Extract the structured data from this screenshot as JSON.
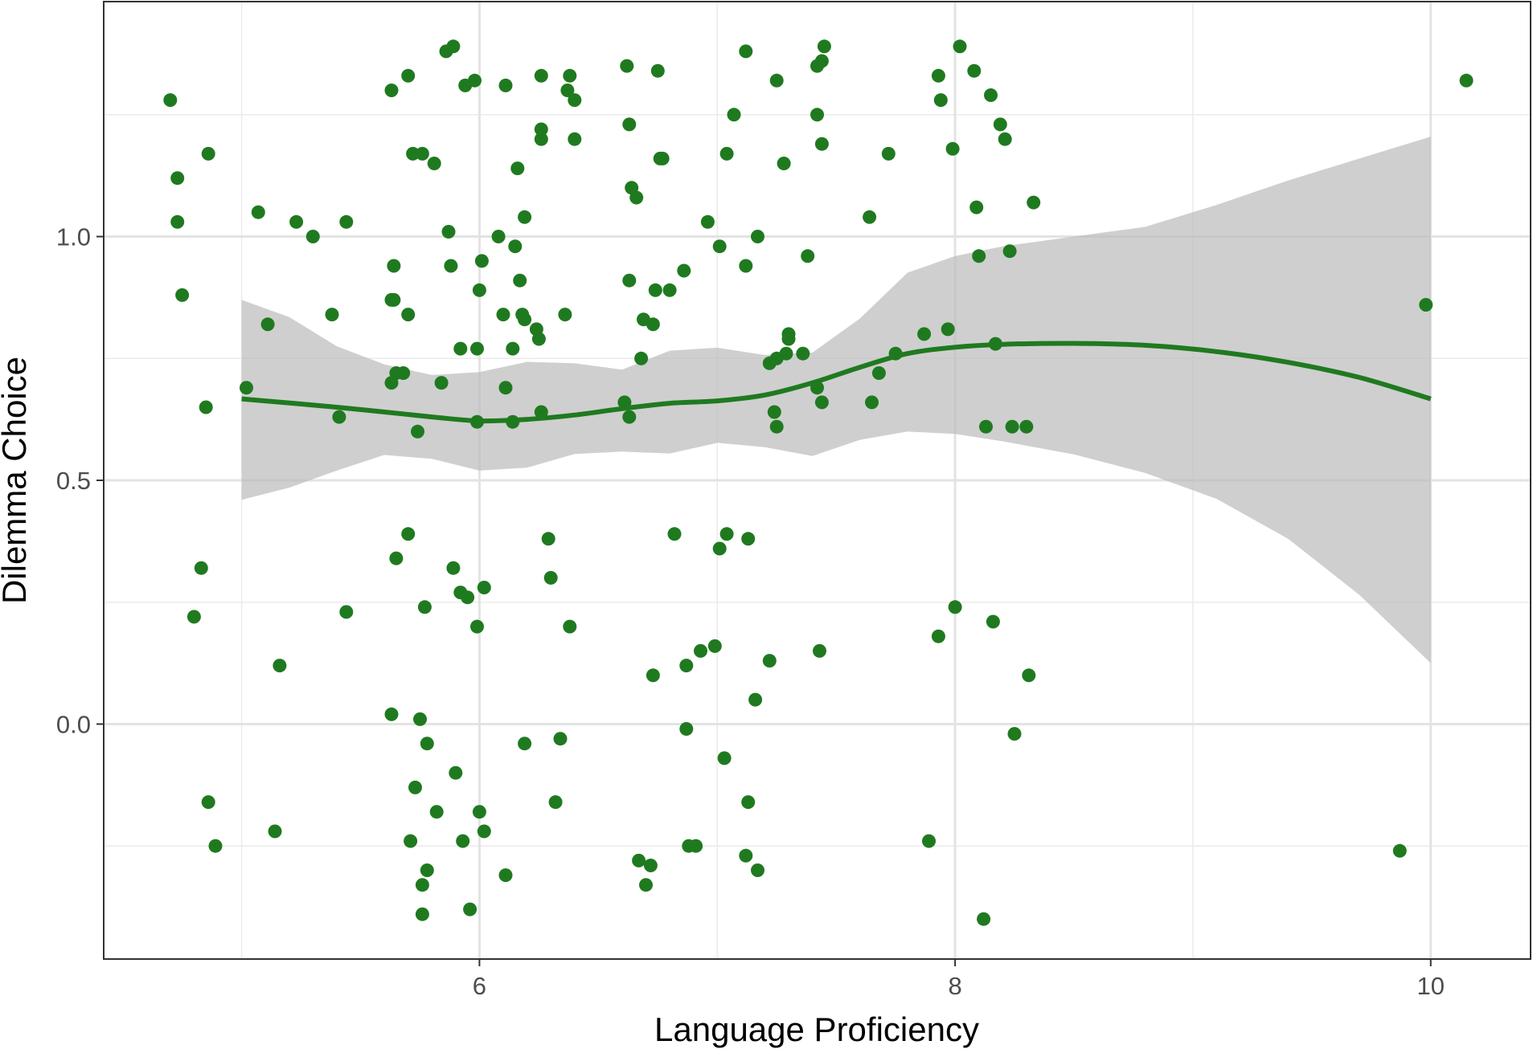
{
  "chart_data": {
    "type": "scatter",
    "title": "",
    "xlabel": "Language Proficiency",
    "ylabel": "Dilemma Choice",
    "xlim": [
      4.42,
      10.42
    ],
    "ylim": [
      -0.482,
      1.482
    ],
    "x_ticks": [
      6,
      8,
      10
    ],
    "y_ticks": [
      0.0,
      0.5,
      1.0
    ],
    "x_tick_labels": [
      "6",
      "8",
      "10"
    ],
    "y_tick_labels": [
      "0.0",
      "0.5",
      "1.0"
    ],
    "grid": true,
    "legend": "none",
    "point_color": "#1f7a1f",
    "line_color": "#1f7a1f",
    "band_color": "#bdbdbd",
    "points": [
      [
        4.7,
        1.28
      ],
      [
        4.73,
        1.12
      ],
      [
        4.73,
        1.03
      ],
      [
        4.75,
        0.88
      ],
      [
        4.83,
        0.32
      ],
      [
        4.8,
        0.22
      ],
      [
        4.85,
        0.65
      ],
      [
        4.86,
        1.17
      ],
      [
        4.86,
        -0.16
      ],
      [
        4.89,
        -0.25
      ],
      [
        5.02,
        0.69
      ],
      [
        5.07,
        1.05
      ],
      [
        5.11,
        0.82
      ],
      [
        5.14,
        -0.22
      ],
      [
        5.16,
        0.12
      ],
      [
        5.23,
        1.03
      ],
      [
        5.3,
        1.0
      ],
      [
        5.38,
        0.84
      ],
      [
        5.41,
        0.63
      ],
      [
        5.44,
        1.03
      ],
      [
        5.44,
        0.23
      ],
      [
        5.63,
        1.3
      ],
      [
        5.63,
        0.87
      ],
      [
        5.63,
        0.7
      ],
      [
        5.64,
        0.94
      ],
      [
        5.64,
        0.87
      ],
      [
        5.65,
        0.72
      ],
      [
        5.65,
        0.34
      ],
      [
        5.63,
        0.02
      ],
      [
        5.68,
        0.72
      ],
      [
        5.7,
        1.33
      ],
      [
        5.7,
        0.84
      ],
      [
        5.7,
        0.39
      ],
      [
        5.71,
        -0.24
      ],
      [
        5.72,
        1.17
      ],
      [
        5.73,
        -0.13
      ],
      [
        5.74,
        0.6
      ],
      [
        5.75,
        0.01
      ],
      [
        5.76,
        1.17
      ],
      [
        5.77,
        0.24
      ],
      [
        5.76,
        -0.33
      ],
      [
        5.76,
        -0.39
      ],
      [
        5.78,
        -0.04
      ],
      [
        5.78,
        -0.3
      ],
      [
        5.81,
        1.15
      ],
      [
        5.82,
        -0.18
      ],
      [
        5.84,
        0.7
      ],
      [
        5.86,
        1.38
      ],
      [
        5.87,
        1.01
      ],
      [
        5.88,
        0.94
      ],
      [
        5.89,
        1.39
      ],
      [
        5.89,
        0.32
      ],
      [
        5.9,
        -0.1
      ],
      [
        5.92,
        0.77
      ],
      [
        5.92,
        0.27
      ],
      [
        5.93,
        -0.24
      ],
      [
        5.94,
        1.31
      ],
      [
        5.95,
        0.26
      ],
      [
        5.96,
        -0.38
      ],
      [
        5.98,
        1.32
      ],
      [
        5.99,
        0.77
      ],
      [
        5.99,
        0.62
      ],
      [
        5.99,
        0.2
      ],
      [
        6.0,
        -0.18
      ],
      [
        6.0,
        0.89
      ],
      [
        6.01,
        0.95
      ],
      [
        6.02,
        0.28
      ],
      [
        6.02,
        -0.22
      ],
      [
        6.08,
        1.0
      ],
      [
        6.1,
        0.84
      ],
      [
        6.11,
        1.31
      ],
      [
        6.11,
        0.69
      ],
      [
        6.11,
        -0.31
      ],
      [
        6.14,
        0.77
      ],
      [
        6.14,
        0.62
      ],
      [
        6.15,
        0.98
      ],
      [
        6.16,
        1.14
      ],
      [
        6.17,
        0.91
      ],
      [
        6.18,
        0.84
      ],
      [
        6.19,
        0.83
      ],
      [
        6.19,
        -0.04
      ],
      [
        6.19,
        1.04
      ],
      [
        6.24,
        0.81
      ],
      [
        6.25,
        0.79
      ],
      [
        6.26,
        1.33
      ],
      [
        6.26,
        1.22
      ],
      [
        6.26,
        1.2
      ],
      [
        6.26,
        0.64
      ],
      [
        6.29,
        0.38
      ],
      [
        6.3,
        0.3
      ],
      [
        6.32,
        -0.16
      ],
      [
        6.34,
        -0.03
      ],
      [
        6.36,
        0.84
      ],
      [
        6.37,
        1.3
      ],
      [
        6.38,
        1.33
      ],
      [
        6.38,
        0.2
      ],
      [
        6.4,
        1.28
      ],
      [
        6.4,
        1.2
      ],
      [
        6.61,
        0.66
      ],
      [
        6.62,
        1.35
      ],
      [
        6.63,
        1.23
      ],
      [
        6.63,
        0.91
      ],
      [
        6.63,
        0.63
      ],
      [
        6.64,
        1.1
      ],
      [
        6.66,
        1.08
      ],
      [
        6.67,
        -0.28
      ],
      [
        6.68,
        0.75
      ],
      [
        6.69,
        0.83
      ],
      [
        6.7,
        -0.33
      ],
      [
        6.72,
        -0.29
      ],
      [
        6.73,
        0.82
      ],
      [
        6.73,
        0.1
      ],
      [
        6.74,
        0.89
      ],
      [
        6.75,
        1.34
      ],
      [
        6.76,
        1.16
      ],
      [
        6.77,
        1.16
      ],
      [
        6.8,
        0.89
      ],
      [
        6.82,
        0.39
      ],
      [
        6.86,
        0.93
      ],
      [
        6.87,
        0.12
      ],
      [
        6.87,
        -0.01
      ],
      [
        6.88,
        -0.25
      ],
      [
        6.91,
        -0.25
      ],
      [
        6.93,
        0.15
      ],
      [
        6.96,
        1.03
      ],
      [
        6.99,
        0.16
      ],
      [
        7.01,
        0.98
      ],
      [
        7.01,
        0.36
      ],
      [
        7.03,
        -0.07
      ],
      [
        7.04,
        1.17
      ],
      [
        7.04,
        0.39
      ],
      [
        7.07,
        1.25
      ],
      [
        7.12,
        1.38
      ],
      [
        7.12,
        0.94
      ],
      [
        7.12,
        -0.27
      ],
      [
        7.13,
        0.38
      ],
      [
        7.13,
        -0.16
      ],
      [
        7.16,
        0.05
      ],
      [
        7.17,
        1.0
      ],
      [
        7.17,
        -0.3
      ],
      [
        7.22,
        0.74
      ],
      [
        7.22,
        0.13
      ],
      [
        7.24,
        0.64
      ],
      [
        7.25,
        0.61
      ],
      [
        7.25,
        1.32
      ],
      [
        7.25,
        0.75
      ],
      [
        7.28,
        1.15
      ],
      [
        7.29,
        0.76
      ],
      [
        7.3,
        0.79
      ],
      [
        7.3,
        0.8
      ],
      [
        7.36,
        0.76
      ],
      [
        7.38,
        0.96
      ],
      [
        7.42,
        1.25
      ],
      [
        7.42,
        0.69
      ],
      [
        7.42,
        1.35
      ],
      [
        7.43,
        0.15
      ],
      [
        7.44,
        1.36
      ],
      [
        7.44,
        1.19
      ],
      [
        7.44,
        0.66
      ],
      [
        7.45,
        1.39
      ],
      [
        7.64,
        1.04
      ],
      [
        7.65,
        0.66
      ],
      [
        7.68,
        0.72
      ],
      [
        7.72,
        1.17
      ],
      [
        7.75,
        0.76
      ],
      [
        7.87,
        0.8
      ],
      [
        7.89,
        -0.24
      ],
      [
        7.93,
        0.18
      ],
      [
        7.93,
        1.33
      ],
      [
        7.94,
        1.28
      ],
      [
        7.97,
        0.81
      ],
      [
        7.99,
        1.18
      ],
      [
        8.0,
        0.24
      ],
      [
        8.02,
        1.39
      ],
      [
        8.08,
        1.34
      ],
      [
        8.09,
        1.06
      ],
      [
        8.1,
        0.96
      ],
      [
        8.12,
        -0.4
      ],
      [
        8.13,
        0.61
      ],
      [
        8.15,
        1.29
      ],
      [
        8.16,
        0.21
      ],
      [
        8.17,
        0.78
      ],
      [
        8.19,
        1.23
      ],
      [
        8.21,
        1.2
      ],
      [
        8.23,
        0.97
      ],
      [
        8.24,
        0.61
      ],
      [
        8.25,
        -0.02
      ],
      [
        8.3,
        0.61
      ],
      [
        8.31,
        0.1
      ],
      [
        8.33,
        1.07
      ],
      [
        9.87,
        -0.26
      ],
      [
        9.98,
        0.86
      ],
      [
        10.15,
        1.32
      ]
    ],
    "loess_fit": [
      [
        5.0,
        0.667
      ],
      [
        5.4,
        0.65
      ],
      [
        5.8,
        0.63
      ],
      [
        6.0,
        0.622
      ],
      [
        6.2,
        0.625
      ],
      [
        6.4,
        0.634
      ],
      [
        6.6,
        0.647
      ],
      [
        6.8,
        0.658
      ],
      [
        7.0,
        0.663
      ],
      [
        7.2,
        0.675
      ],
      [
        7.4,
        0.7
      ],
      [
        7.6,
        0.732
      ],
      [
        7.8,
        0.76
      ],
      [
        8.0,
        0.773
      ],
      [
        8.2,
        0.779
      ],
      [
        8.5,
        0.781
      ],
      [
        8.8,
        0.777
      ],
      [
        9.1,
        0.764
      ],
      [
        9.4,
        0.742
      ],
      [
        9.7,
        0.711
      ],
      [
        10.0,
        0.667
      ]
    ],
    "ci_upper": [
      [
        5.0,
        0.87
      ],
      [
        5.2,
        0.835
      ],
      [
        5.4,
        0.775
      ],
      [
        5.6,
        0.738
      ],
      [
        5.8,
        0.716
      ],
      [
        6.0,
        0.722
      ],
      [
        6.2,
        0.743
      ],
      [
        6.4,
        0.74
      ],
      [
        6.6,
        0.727
      ],
      [
        6.8,
        0.766
      ],
      [
        7.0,
        0.772
      ],
      [
        7.2,
        0.757
      ],
      [
        7.4,
        0.762
      ],
      [
        7.6,
        0.832
      ],
      [
        7.8,
        0.926
      ],
      [
        8.0,
        0.96
      ],
      [
        8.2,
        0.98
      ],
      [
        8.5,
        1.0
      ],
      [
        8.8,
        1.02
      ],
      [
        9.1,
        1.065
      ],
      [
        9.4,
        1.115
      ],
      [
        9.7,
        1.16
      ],
      [
        10.0,
        1.205
      ]
    ],
    "ci_lower": [
      [
        10.0,
        0.125
      ],
      [
        9.7,
        0.265
      ],
      [
        9.4,
        0.38
      ],
      [
        9.1,
        0.462
      ],
      [
        8.8,
        0.515
      ],
      [
        8.5,
        0.553
      ],
      [
        8.2,
        0.58
      ],
      [
        8.0,
        0.595
      ],
      [
        7.8,
        0.6
      ],
      [
        7.6,
        0.583
      ],
      [
        7.4,
        0.55
      ],
      [
        7.2,
        0.568
      ],
      [
        7.0,
        0.577
      ],
      [
        6.8,
        0.555
      ],
      [
        6.6,
        0.559
      ],
      [
        6.4,
        0.554
      ],
      [
        6.2,
        0.526
      ],
      [
        6.0,
        0.52
      ],
      [
        5.8,
        0.544
      ],
      [
        5.6,
        0.552
      ],
      [
        5.4,
        0.52
      ],
      [
        5.2,
        0.485
      ],
      [
        5.0,
        0.46
      ]
    ]
  }
}
